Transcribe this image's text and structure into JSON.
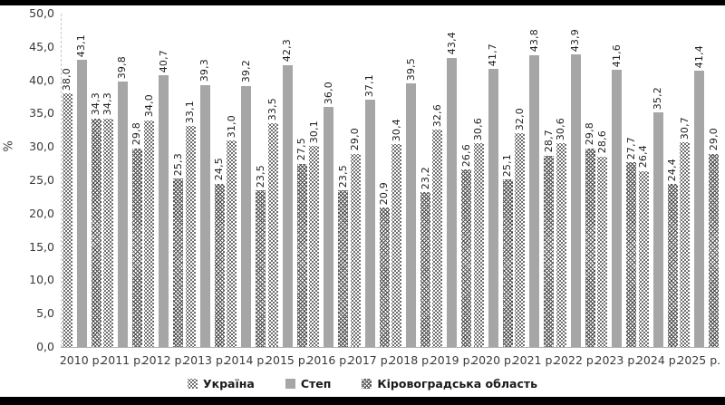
{
  "colors": {
    "solid_bar": "#a6a6a6",
    "pattern_ink": "#3d3d3d",
    "axis_line": "#b3b3b3",
    "tick_text": "#3a3a3a",
    "frame_bar": "#000000"
  },
  "chart_data": {
    "type": "bar",
    "title": "",
    "xlabel": "",
    "ylabel": "%",
    "ylim": [
      0,
      50
    ],
    "ytick_step": 5,
    "grid": false,
    "legend_position": "bottom",
    "value_labels": "rotated",
    "categories": [
      "2010 р.",
      "2011 р.",
      "2012 р.",
      "2013 р.",
      "2014 р.",
      "2015 р.",
      "2016 р.",
      "2017 р.",
      "2018 р.",
      "2019 р.",
      "2020 р.",
      "2021 р.",
      "2022 р.",
      "2023 р.",
      "2024 р.",
      "2025 р."
    ],
    "series": [
      {
        "name": "Україна",
        "pattern": "checker",
        "values": [
          38.0,
          34.3,
          34.0,
          33.1,
          31.0,
          33.5,
          30.1,
          29.0,
          30.4,
          32.6,
          30.6,
          32.0,
          30.6,
          28.6,
          26.4,
          30.7
        ]
      },
      {
        "name": "Степ",
        "pattern": "solid",
        "color": "#a6a6a6",
        "values": [
          43.1,
          39.8,
          40.7,
          39.3,
          39.2,
          42.3,
          36.0,
          37.1,
          39.5,
          43.4,
          41.7,
          43.8,
          43.9,
          41.6,
          35.2,
          41.4
        ]
      },
      {
        "name": "Кіровоградська область",
        "pattern": "wave",
        "values": [
          34.3,
          29.8,
          25.3,
          24.5,
          23.5,
          27.5,
          23.5,
          20.9,
          23.2,
          26.6,
          25.1,
          28.7,
          29.8,
          27.7,
          24.4,
          29.0
        ]
      }
    ]
  }
}
